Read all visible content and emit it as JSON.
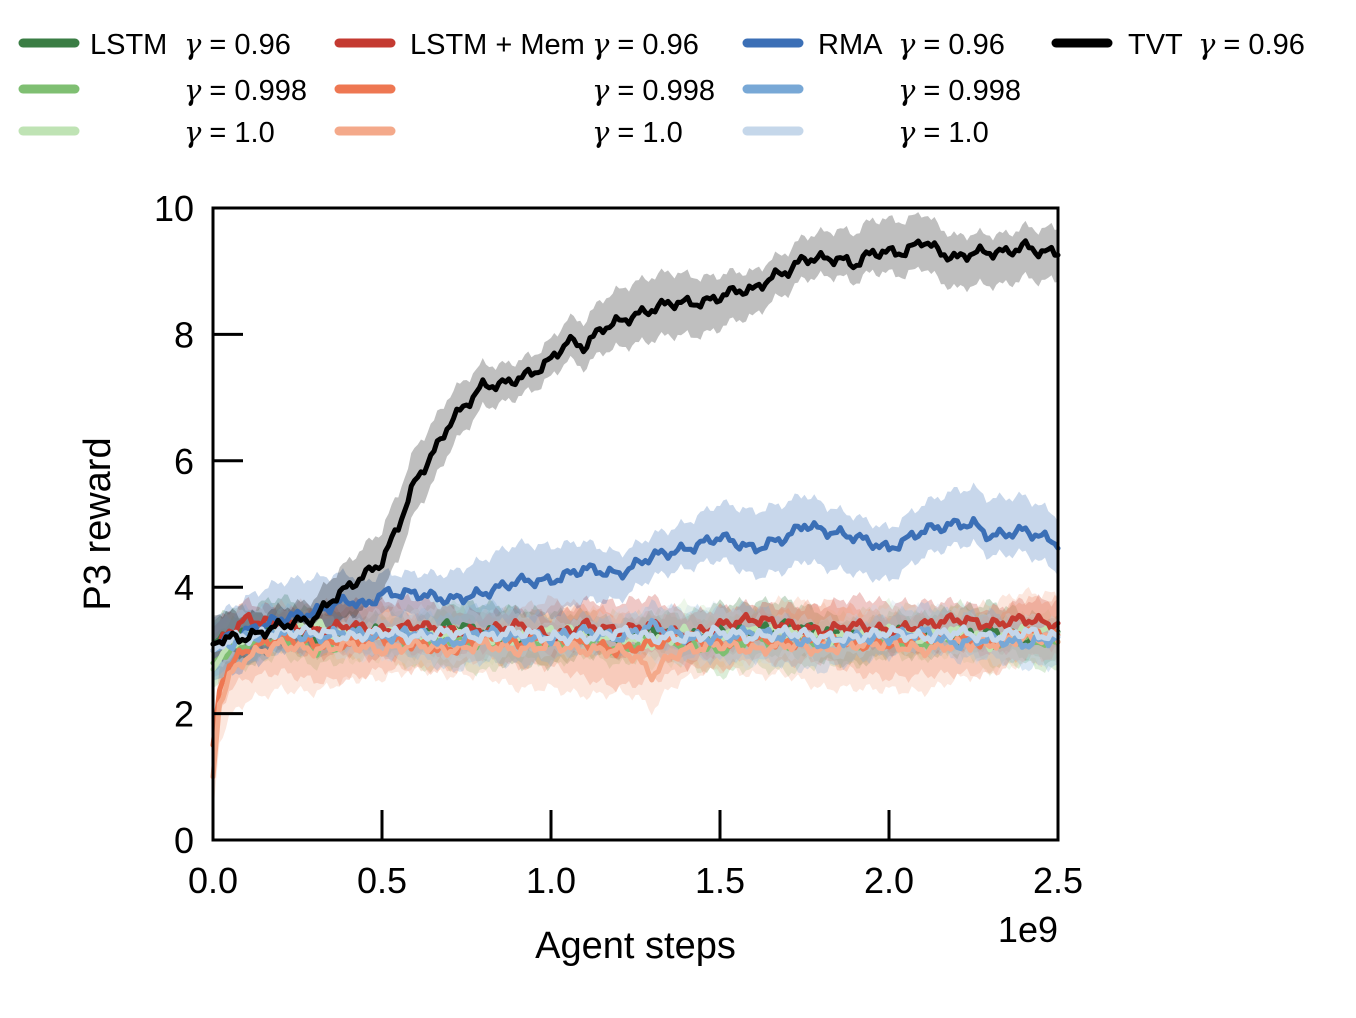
{
  "chart_data": {
    "type": "line",
    "xlabel": "Agent steps",
    "ylabel": "P3 reward",
    "x_offset_label": "1e9",
    "xlim": [
      0,
      2.5
    ],
    "ylim": [
      0,
      10
    ],
    "xticks": [
      "0.0",
      "0.5",
      "1.0",
      "1.5",
      "2.0",
      "2.5"
    ],
    "yticks": [
      "0",
      "2",
      "4",
      "6",
      "8",
      "10"
    ],
    "x_tick_values": [
      0,
      0.5,
      1.0,
      1.5,
      2.0,
      2.5
    ],
    "y_tick_values": [
      0,
      2,
      4,
      6,
      8,
      10
    ],
    "legend_position": "top",
    "legend_columns": [
      {
        "label": "LSTM",
        "rows": [
          {
            "gamma_text": "γ = 0.96",
            "series_index": 0
          },
          {
            "gamma_text": "γ = 0.998",
            "series_index": 1
          },
          {
            "gamma_text": "γ = 1.0",
            "series_index": 2
          }
        ]
      },
      {
        "label": "LSTM + Mem",
        "rows": [
          {
            "gamma_text": "γ = 0.96",
            "series_index": 3
          },
          {
            "gamma_text": "γ = 0.998",
            "series_index": 4
          },
          {
            "gamma_text": "γ = 1.0",
            "series_index": 5
          }
        ]
      },
      {
        "label": "RMA",
        "rows": [
          {
            "gamma_text": "γ = 0.96",
            "series_index": 6
          },
          {
            "gamma_text": "γ = 0.998",
            "series_index": 7
          },
          {
            "gamma_text": "γ = 1.0",
            "series_index": 8
          }
        ]
      },
      {
        "label": "TVT",
        "rows": [
          {
            "gamma_text": "γ = 0.96",
            "series_index": 9
          }
        ]
      }
    ],
    "series": [
      {
        "name": "LSTM γ = 0.96",
        "color": "#3a7d44",
        "band": 0.35,
        "x": [
          0,
          0.05,
          0.1,
          0.2,
          0.3,
          0.4,
          0.5,
          0.6,
          0.7,
          0.8,
          0.9,
          1.0,
          1.1,
          1.2,
          1.3,
          1.4,
          1.5,
          1.6,
          1.7,
          1.8,
          1.9,
          2.0,
          2.1,
          2.2,
          2.3,
          2.4,
          2.5
        ],
        "y": [
          3.1,
          3.3,
          3.2,
          3.4,
          3.2,
          3.3,
          3.3,
          3.2,
          3.4,
          3.3,
          3.2,
          3.2,
          3.3,
          3.2,
          3.3,
          3.2,
          3.3,
          3.3,
          3.4,
          3.3,
          3.2,
          3.3,
          3.2,
          3.2,
          3.3,
          3.2,
          3.2
        ]
      },
      {
        "name": "LSTM γ = 0.998",
        "color": "#7fbf72",
        "band": 0.35,
        "x": [
          0,
          0.05,
          0.1,
          0.2,
          0.3,
          0.4,
          0.5,
          0.6,
          0.7,
          0.8,
          0.9,
          1.0,
          1.1,
          1.2,
          1.3,
          1.4,
          1.5,
          1.6,
          1.7,
          1.8,
          1.9,
          2.0,
          2.1,
          2.2,
          2.3,
          2.4,
          2.5
        ],
        "y": [
          2.8,
          3.0,
          3.1,
          3.2,
          3.0,
          3.1,
          3.3,
          3.1,
          3.2,
          3.1,
          3.3,
          3.1,
          3.2,
          3.0,
          3.2,
          3.1,
          3.0,
          3.2,
          3.1,
          3.2,
          3.1,
          3.2,
          3.1,
          3.3,
          3.1,
          3.2,
          3.1
        ]
      },
      {
        "name": "LSTM γ = 1.0",
        "color": "#bfe3b4",
        "band": 0.35,
        "x": [
          0,
          0.05,
          0.1,
          0.2,
          0.3,
          0.4,
          0.5,
          0.6,
          0.7,
          0.8,
          0.9,
          1.0,
          1.1,
          1.2,
          1.3,
          1.4,
          1.5,
          1.6,
          1.7,
          1.8,
          1.9,
          2.0,
          2.1,
          2.2,
          2.3,
          2.4,
          2.5
        ],
        "y": [
          2.7,
          3.1,
          3.2,
          3.3,
          3.4,
          3.2,
          3.3,
          3.2,
          3.3,
          3.2,
          3.2,
          3.3,
          3.3,
          3.2,
          3.1,
          3.3,
          3.2,
          3.3,
          3.3,
          3.2,
          3.2,
          3.3,
          3.2,
          3.3,
          3.1,
          3.3,
          3.3
        ]
      },
      {
        "name": "LSTM + Mem γ = 0.96",
        "color": "#c43a31",
        "band": 0.35,
        "x": [
          0,
          0.05,
          0.1,
          0.2,
          0.3,
          0.4,
          0.5,
          0.6,
          0.7,
          0.8,
          0.9,
          1.0,
          1.1,
          1.2,
          1.3,
          1.4,
          1.5,
          1.6,
          1.7,
          1.8,
          1.9,
          2.0,
          2.1,
          2.2,
          2.3,
          2.4,
          2.5
        ],
        "y": [
          3.0,
          3.3,
          3.5,
          3.4,
          3.3,
          3.4,
          3.3,
          3.4,
          3.3,
          3.3,
          3.4,
          3.2,
          3.4,
          3.3,
          3.4,
          3.2,
          3.4,
          3.5,
          3.4,
          3.3,
          3.4,
          3.3,
          3.4,
          3.5,
          3.4,
          3.5,
          3.4
        ]
      },
      {
        "name": "LSTM + Mem γ = 0.998",
        "color": "#ee7752",
        "band": 0.45,
        "x": [
          0,
          0.02,
          0.05,
          0.1,
          0.2,
          0.3,
          0.4,
          0.5,
          0.6,
          0.7,
          0.8,
          0.9,
          1.0,
          1.1,
          1.2,
          1.3,
          1.4,
          1.5,
          1.6,
          1.7,
          1.8,
          1.9,
          2.0,
          2.1,
          2.2,
          2.3,
          2.4,
          2.5
        ],
        "y": [
          1.5,
          2.4,
          2.8,
          3.0,
          3.2,
          3.1,
          3.1,
          3.2,
          3.1,
          3.0,
          3.2,
          3.1,
          3.2,
          3.1,
          3.0,
          3.1,
          3.2,
          3.1,
          3.2,
          3.1,
          3.2,
          3.1,
          3.1,
          3.2,
          3.2,
          3.1,
          3.3,
          3.2
        ]
      },
      {
        "name": "LSTM + Mem γ = 1.0",
        "color": "#f4a98a",
        "band": 0.55,
        "x": [
          0,
          0.02,
          0.05,
          0.1,
          0.2,
          0.3,
          0.4,
          0.5,
          0.6,
          0.7,
          0.8,
          0.9,
          1.0,
          1.1,
          1.2,
          1.25,
          1.3,
          1.35,
          1.4,
          1.5,
          1.6,
          1.7,
          1.8,
          1.9,
          2.0,
          2.1,
          2.2,
          2.3,
          2.4,
          2.5
        ],
        "y": [
          1.0,
          2.2,
          2.6,
          2.9,
          3.1,
          3.0,
          3.1,
          3.0,
          3.1,
          3.0,
          3.1,
          3.0,
          3.1,
          3.0,
          3.0,
          2.9,
          2.6,
          2.9,
          3.0,
          3.1,
          3.0,
          3.1,
          3.0,
          3.1,
          3.1,
          3.0,
          3.1,
          3.1,
          3.2,
          3.2
        ]
      },
      {
        "name": "RMA γ = 0.96",
        "color": "#3b6fb6",
        "band": 0.45,
        "x": [
          0,
          0.05,
          0.1,
          0.2,
          0.3,
          0.4,
          0.45,
          0.5,
          0.6,
          0.7,
          0.8,
          0.9,
          1.0,
          1.05,
          1.1,
          1.2,
          1.3,
          1.4,
          1.5,
          1.6,
          1.7,
          1.75,
          1.8,
          1.9,
          2.0,
          2.1,
          2.2,
          2.25,
          2.3,
          2.4,
          2.5
        ],
        "y": [
          3.1,
          3.2,
          3.3,
          3.5,
          3.6,
          3.8,
          3.7,
          3.9,
          3.9,
          3.8,
          3.9,
          4.1,
          4.1,
          4.2,
          4.3,
          4.2,
          4.5,
          4.6,
          4.8,
          4.6,
          4.8,
          5.0,
          4.9,
          4.8,
          4.6,
          4.9,
          5.0,
          5.0,
          4.8,
          4.9,
          4.7
        ]
      },
      {
        "name": "RMA γ = 0.998",
        "color": "#78a8d6",
        "band": 0.35,
        "x": [
          0,
          0.05,
          0.1,
          0.2,
          0.3,
          0.4,
          0.5,
          0.6,
          0.7,
          0.8,
          0.9,
          1.0,
          1.1,
          1.2,
          1.3,
          1.4,
          1.5,
          1.6,
          1.7,
          1.8,
          1.9,
          2.0,
          2.1,
          2.2,
          2.3,
          2.4,
          2.5
        ],
        "y": [
          3.0,
          3.1,
          3.2,
          3.3,
          3.2,
          3.3,
          3.2,
          3.3,
          3.1,
          3.3,
          3.2,
          3.2,
          3.3,
          3.2,
          3.4,
          3.2,
          3.2,
          3.3,
          3.2,
          3.1,
          3.2,
          3.2,
          3.3,
          3.1,
          3.2,
          3.1,
          3.2
        ]
      },
      {
        "name": "RMA γ = 1.0",
        "color": "#c5d7ea",
        "band": 0.35,
        "x": [
          0,
          0.05,
          0.1,
          0.2,
          0.3,
          0.4,
          0.5,
          0.6,
          0.7,
          0.8,
          0.9,
          1.0,
          1.1,
          1.2,
          1.3,
          1.4,
          1.5,
          1.6,
          1.7,
          1.8,
          1.9,
          2.0,
          2.1,
          2.2,
          2.3,
          2.4,
          2.5
        ],
        "y": [
          3.0,
          3.2,
          3.2,
          3.3,
          3.3,
          3.2,
          3.3,
          3.2,
          3.3,
          3.2,
          3.3,
          3.2,
          3.2,
          3.3,
          3.2,
          3.2,
          3.3,
          3.2,
          3.3,
          3.2,
          3.2,
          3.3,
          3.2,
          3.3,
          3.2,
          3.3,
          3.2
        ]
      },
      {
        "name": "TVT γ = 0.96",
        "color": "#000000",
        "band": 0.4,
        "x": [
          0,
          0.05,
          0.1,
          0.2,
          0.3,
          0.35,
          0.4,
          0.5,
          0.55,
          0.6,
          0.65,
          0.7,
          0.75,
          0.8,
          0.85,
          0.9,
          0.95,
          1.0,
          1.05,
          1.1,
          1.15,
          1.2,
          1.25,
          1.3,
          1.35,
          1.4,
          1.45,
          1.5,
          1.55,
          1.6,
          1.65,
          1.7,
          1.75,
          1.8,
          1.85,
          1.9,
          1.95,
          2.0,
          2.05,
          2.1,
          2.15,
          2.2,
          2.25,
          2.3,
          2.35,
          2.4,
          2.45,
          2.5
        ],
        "y": [
          3.1,
          3.2,
          3.2,
          3.4,
          3.5,
          3.8,
          4.0,
          4.4,
          5.0,
          5.7,
          6.1,
          6.6,
          6.9,
          7.2,
          7.2,
          7.3,
          7.4,
          7.6,
          7.9,
          7.8,
          8.1,
          8.2,
          8.3,
          8.4,
          8.5,
          8.5,
          8.5,
          8.6,
          8.7,
          8.7,
          8.9,
          9.0,
          9.2,
          9.2,
          9.2,
          9.1,
          9.3,
          9.3,
          9.3,
          9.5,
          9.3,
          9.2,
          9.3,
          9.3,
          9.3,
          9.4,
          9.3,
          9.3
        ]
      }
    ]
  }
}
